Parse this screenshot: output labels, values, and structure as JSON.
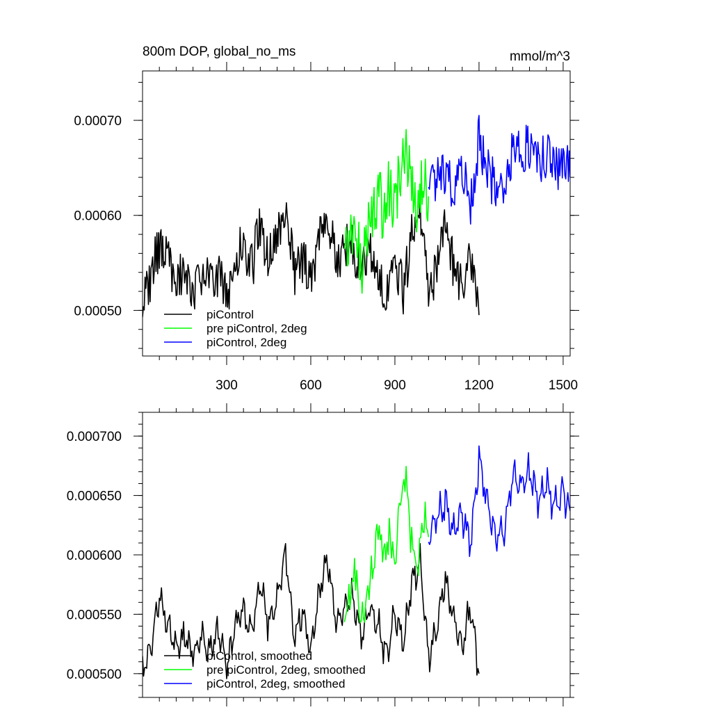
{
  "chart_data": [
    {
      "type": "line",
      "title_left": "800m DOP, global_no_ms",
      "title_right": "mmol/m^3",
      "xlabel": "",
      "ylabel": "",
      "xlim": [
        0,
        1525
      ],
      "ylim": [
        0.000452,
        0.000752
      ],
      "x_ticks": [
        300,
        600,
        900,
        1200,
        1500
      ],
      "x_tick_labels": [
        "300",
        "600",
        "900",
        "1200",
        "1500"
      ],
      "y_ticks": [
        0.0005,
        0.0006,
        0.0007
      ],
      "y_tick_labels": [
        "0.00050",
        "0.00060",
        "0.00070"
      ],
      "legend": [
        "piControl",
        "pre piControl, 2deg",
        "piControl, 2deg"
      ],
      "legend_position": "bottom-left",
      "grid": false,
      "series": [
        {
          "name": "piControl",
          "color": "#000000",
          "x": [
            0,
            30,
            60,
            90,
            120,
            150,
            180,
            210,
            240,
            270,
            300,
            330,
            360,
            390,
            420,
            450,
            480,
            510,
            540,
            570,
            600,
            630,
            660,
            690,
            720,
            750,
            780,
            810,
            840,
            870,
            900,
            930,
            960,
            990,
            1020,
            1050,
            1080,
            1110,
            1140,
            1170,
            1200
          ],
          "y": [
            0.000505,
            0.000535,
            0.00057,
            0.00055,
            0.000535,
            0.000545,
            0.00052,
            0.00054,
            0.000525,
            0.00054,
            0.00051,
            0.000555,
            0.00057,
            0.000545,
            0.00059,
            0.00055,
            0.00058,
            0.000615,
            0.00054,
            0.000555,
            0.00053,
            0.00058,
            0.000605,
            0.00055,
            0.000565,
            0.00057,
            0.00054,
            0.000565,
            0.000545,
            0.00051,
            0.000555,
            0.00052,
            0.000575,
            0.000605,
            0.00052,
            0.000545,
            0.00059,
            0.000545,
            0.000525,
            0.00056,
            0.000495
          ]
        },
        {
          "name": "pre piControl, 2deg",
          "color": "#00ff00",
          "x": [
            720,
            740,
            760,
            780,
            800,
            820,
            840,
            860,
            880,
            900,
            920,
            940,
            960,
            980,
            1000,
            1020
          ],
          "y": [
            0.00055,
            0.00057,
            0.00059,
            0.000545,
            0.00058,
            0.0006,
            0.000625,
            0.0006,
            0.00063,
            0.00061,
            0.00065,
            0.000665,
            0.000625,
            0.0006,
            0.00064,
            0.00062
          ]
        },
        {
          "name": "piControl, 2deg",
          "color": "#0000ff",
          "x": [
            1020,
            1050,
            1080,
            1110,
            1140,
            1170,
            1200,
            1230,
            1260,
            1290,
            1320,
            1350,
            1380,
            1410,
            1440,
            1470,
            1500,
            1525
          ],
          "y": [
            0.00062,
            0.000635,
            0.00065,
            0.000625,
            0.00064,
            0.000615,
            0.00068,
            0.000645,
            0.00063,
            0.000625,
            0.00067,
            0.00066,
            0.000675,
            0.000655,
            0.000665,
            0.000645,
            0.00066,
            0.00064
          ]
        }
      ]
    },
    {
      "type": "line",
      "xlabel": "",
      "ylabel": "",
      "xlim": [
        0,
        1525
      ],
      "ylim": [
        0.00048,
        0.00072
      ],
      "x_ticks": [
        300,
        600,
        900,
        1200,
        1500
      ],
      "y_ticks": [
        0.0005,
        0.00055,
        0.0006,
        0.00065,
        0.0007
      ],
      "y_tick_labels": [
        "0.000500",
        "0.000550",
        "0.000600",
        "0.000650",
        "0.000700"
      ],
      "legend": [
        "piControl, smoothed",
        "pre piControl, 2deg, smoothed",
        "piControl, 2deg, smoothed"
      ],
      "legend_position": "bottom-left",
      "grid": false,
      "series": [
        {
          "name": "piControl, smoothed",
          "color": "#000000",
          "x": [
            0,
            30,
            60,
            90,
            120,
            150,
            180,
            210,
            240,
            270,
            300,
            330,
            360,
            390,
            420,
            450,
            480,
            510,
            540,
            570,
            600,
            630,
            660,
            690,
            720,
            750,
            780,
            810,
            840,
            870,
            900,
            930,
            960,
            990,
            1020,
            1050,
            1080,
            1110,
            1140,
            1170,
            1200
          ],
          "y": [
            0.000505,
            0.00052,
            0.000565,
            0.00054,
            0.000525,
            0.00053,
            0.000515,
            0.00053,
            0.00052,
            0.000535,
            0.000505,
            0.00054,
            0.000555,
            0.000535,
            0.000575,
            0.00054,
            0.000565,
            0.000605,
            0.00053,
            0.00055,
            0.00052,
            0.00057,
            0.000595,
            0.00054,
            0.000555,
            0.000565,
            0.00053,
            0.000555,
            0.00054,
            0.000515,
            0.00055,
            0.000525,
            0.000575,
            0.000595,
            0.000515,
            0.00054,
            0.00058,
            0.000545,
            0.000525,
            0.000555,
            0.0005
          ]
        },
        {
          "name": "pre piControl, 2deg, smoothed",
          "color": "#00ff00",
          "x": [
            720,
            740,
            760,
            780,
            800,
            820,
            840,
            860,
            880,
            900,
            920,
            940,
            960,
            980,
            1000,
            1020
          ],
          "y": [
            0.000555,
            0.00057,
            0.00058,
            0.000535,
            0.00057,
            0.00059,
            0.000615,
            0.00059,
            0.000625,
            0.0006,
            0.000645,
            0.00066,
            0.000615,
            0.000595,
            0.00063,
            0.000615
          ]
        },
        {
          "name": "piControl, 2deg, smoothed",
          "color": "#0000ff",
          "x": [
            1020,
            1050,
            1080,
            1110,
            1140,
            1170,
            1200,
            1230,
            1260,
            1290,
            1320,
            1350,
            1380,
            1410,
            1440,
            1470,
            1500,
            1525
          ],
          "y": [
            0.000615,
            0.00063,
            0.000645,
            0.00062,
            0.000635,
            0.00061,
            0.00068,
            0.000645,
            0.000615,
            0.00062,
            0.000665,
            0.00066,
            0.00067,
            0.000645,
            0.00066,
            0.00064,
            0.000655,
            0.000637
          ]
        }
      ]
    }
  ]
}
